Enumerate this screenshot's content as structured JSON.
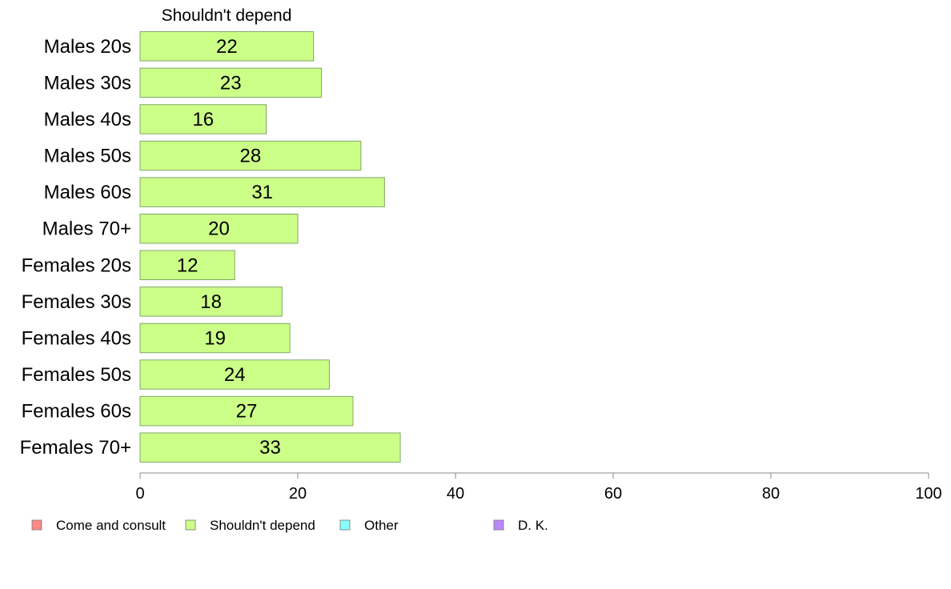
{
  "chart_data": {
    "type": "bar",
    "orientation": "horizontal",
    "stacked": true,
    "column_header": "Shouldn't depend",
    "categories": [
      "Males 20s",
      "Males 30s",
      "Males 40s",
      "Males 50s",
      "Males 60s",
      "Males 70+",
      "Females 20s",
      "Females 30s",
      "Females 40s",
      "Females 50s",
      "Females 60s",
      "Females 70+"
    ],
    "series": [
      {
        "name": "Shouldn't depend",
        "color": "#ccff88",
        "values": [
          22,
          23,
          16,
          28,
          31,
          20,
          12,
          18,
          19,
          24,
          27,
          33
        ]
      }
    ],
    "xlim": [
      0,
      100
    ],
    "xticks": [
      0,
      20,
      40,
      60,
      80,
      100
    ],
    "legend": {
      "placement": "bottom",
      "items": [
        {
          "label": "Come and consult",
          "color": "#ff8888"
        },
        {
          "label": "Shouldn't depend",
          "color": "#ccff88"
        },
        {
          "label": "Other",
          "color": "#88ffff"
        },
        {
          "label": "D. K.",
          "color": "#bb88ff"
        }
      ]
    }
  }
}
